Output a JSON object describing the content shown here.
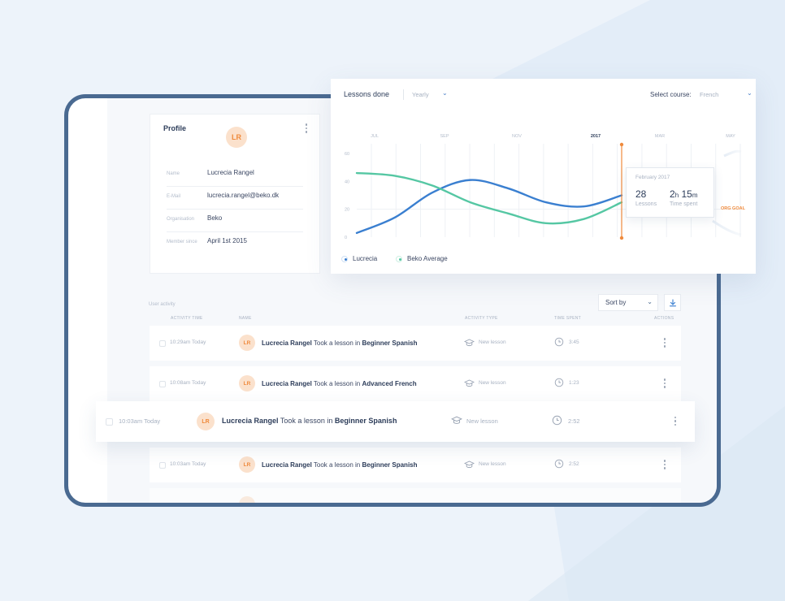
{
  "profile": {
    "title": "Profile",
    "avatar_initials": "LR",
    "fields": [
      {
        "label": "Name",
        "value": "Lucrecia Rangel"
      },
      {
        "label": "E-Mail",
        "value": "lucrecia.rangel@beko.dk"
      },
      {
        "label": "Organisation",
        "value": "Beko"
      },
      {
        "label": "Member since",
        "value": "April 1st 2015"
      }
    ]
  },
  "chart_header": {
    "title": "Lessons done",
    "period": "Yearly",
    "course_label": "Select course:",
    "course": "French"
  },
  "chart_data": {
    "type": "line",
    "x_ticks": [
      "JUL",
      "SEP",
      "NOV",
      "2017",
      "MAR",
      "MAY"
    ],
    "y_ticks": [
      "60",
      "40",
      "20",
      "0"
    ],
    "ylim": [
      0,
      60
    ],
    "grid": true,
    "series": [
      {
        "name": "Lucrecia",
        "color": "#3a7fd0",
        "x": [
          "JUN",
          "JUL",
          "AUG",
          "SEP",
          "OCT",
          "NOV",
          "DEC",
          "JAN"
        ],
        "values": [
          3,
          14,
          32,
          41,
          35,
          25,
          22,
          30
        ]
      },
      {
        "name": "Beko Average",
        "color": "#55c7a3",
        "x": [
          "JUN",
          "JUL",
          "AUG",
          "SEP",
          "OCT",
          "NOV",
          "DEC",
          "JAN"
        ],
        "values": [
          46,
          44,
          37,
          25,
          17,
          10,
          13,
          25
        ]
      }
    ],
    "goal_label": "ORG GOAL",
    "tooltip": {
      "date": "February 2017",
      "lessons_value": "28",
      "lessons_label": "Lessons",
      "time_hours": "2",
      "time_hours_unit": "h",
      "time_minutes": "15",
      "time_minutes_unit": "m",
      "time_label": "Time spent"
    }
  },
  "activity": {
    "section_label": "User activity",
    "sort_label": "Sort by",
    "columns": [
      "ACTIVITY TIME",
      "NAME",
      "ACTIVITY TYPE",
      "TIME SPENT",
      "ACTIONS"
    ],
    "rows": [
      {
        "time": "10:29am Today",
        "initials": "LR",
        "user": "Lucrecia Rangel",
        "action": " Took a lesson in ",
        "course": "Beginner Spanish",
        "type": "New lesson",
        "spent": "3:45"
      },
      {
        "time": "10:08am Today",
        "initials": "LR",
        "user": "Lucrecia Rangel",
        "action": " Took a lesson in ",
        "course": "Advanced French",
        "type": "New lesson",
        "spent": "1:23"
      },
      {
        "time": "10:03am Today",
        "initials": "LR",
        "user": "Lucrecia Rangel",
        "action": " Took a lesson in ",
        "course": "Beginner Spanish",
        "type": "New lesson",
        "spent": "2:52"
      },
      {
        "time": "10:03am Today",
        "initials": "LR",
        "user": "Lucrecia Rangel",
        "action": " Took a lesson in ",
        "course": "Beginner Spanish",
        "type": "New lesson",
        "spent": "2:52"
      }
    ]
  },
  "colors": {
    "accent": "#3a7fd0",
    "secondary": "#55c7a3",
    "orange": "#ef8a3c",
    "frame": "#4a6a91"
  }
}
